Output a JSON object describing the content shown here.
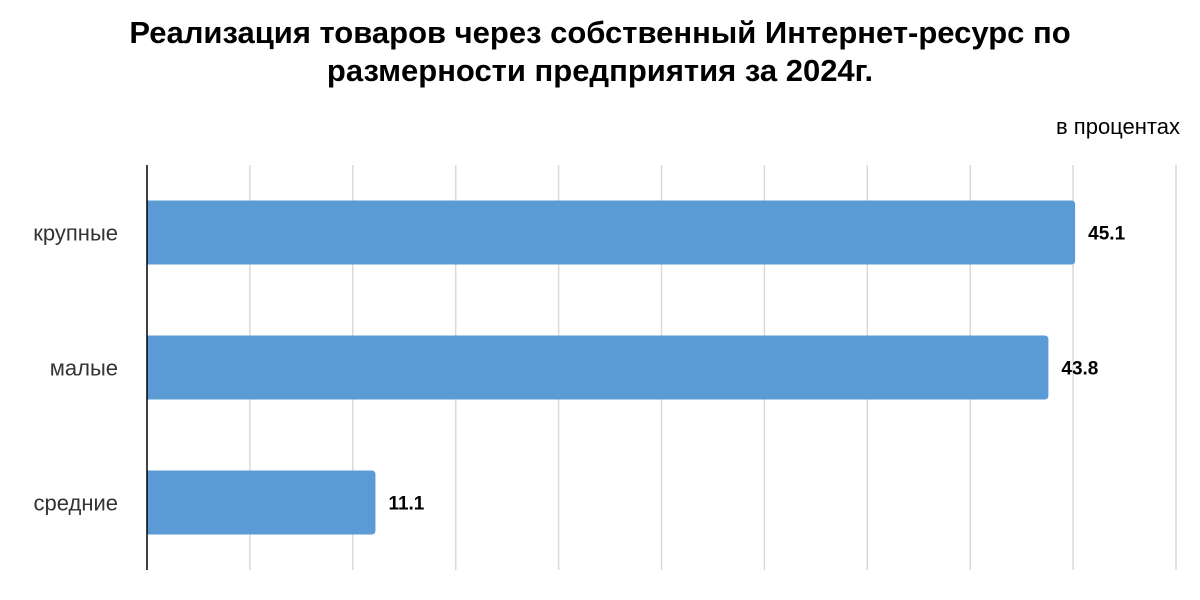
{
  "chart_data": {
    "type": "bar",
    "orientation": "horizontal",
    "title": "Реализация товаров через собственный Интернет-ресурс по размерности предприятия за 2024г.",
    "subtitle": "в процентах",
    "categories": [
      "крупные",
      "малые",
      "средние"
    ],
    "values": [
      45.1,
      43.8,
      11.1
    ],
    "color": "#5b9bd5",
    "xlim": [
      0,
      50
    ],
    "xticks": [
      0,
      5,
      10,
      15,
      20,
      25,
      30,
      35,
      40,
      45,
      50
    ],
    "grid": true
  }
}
